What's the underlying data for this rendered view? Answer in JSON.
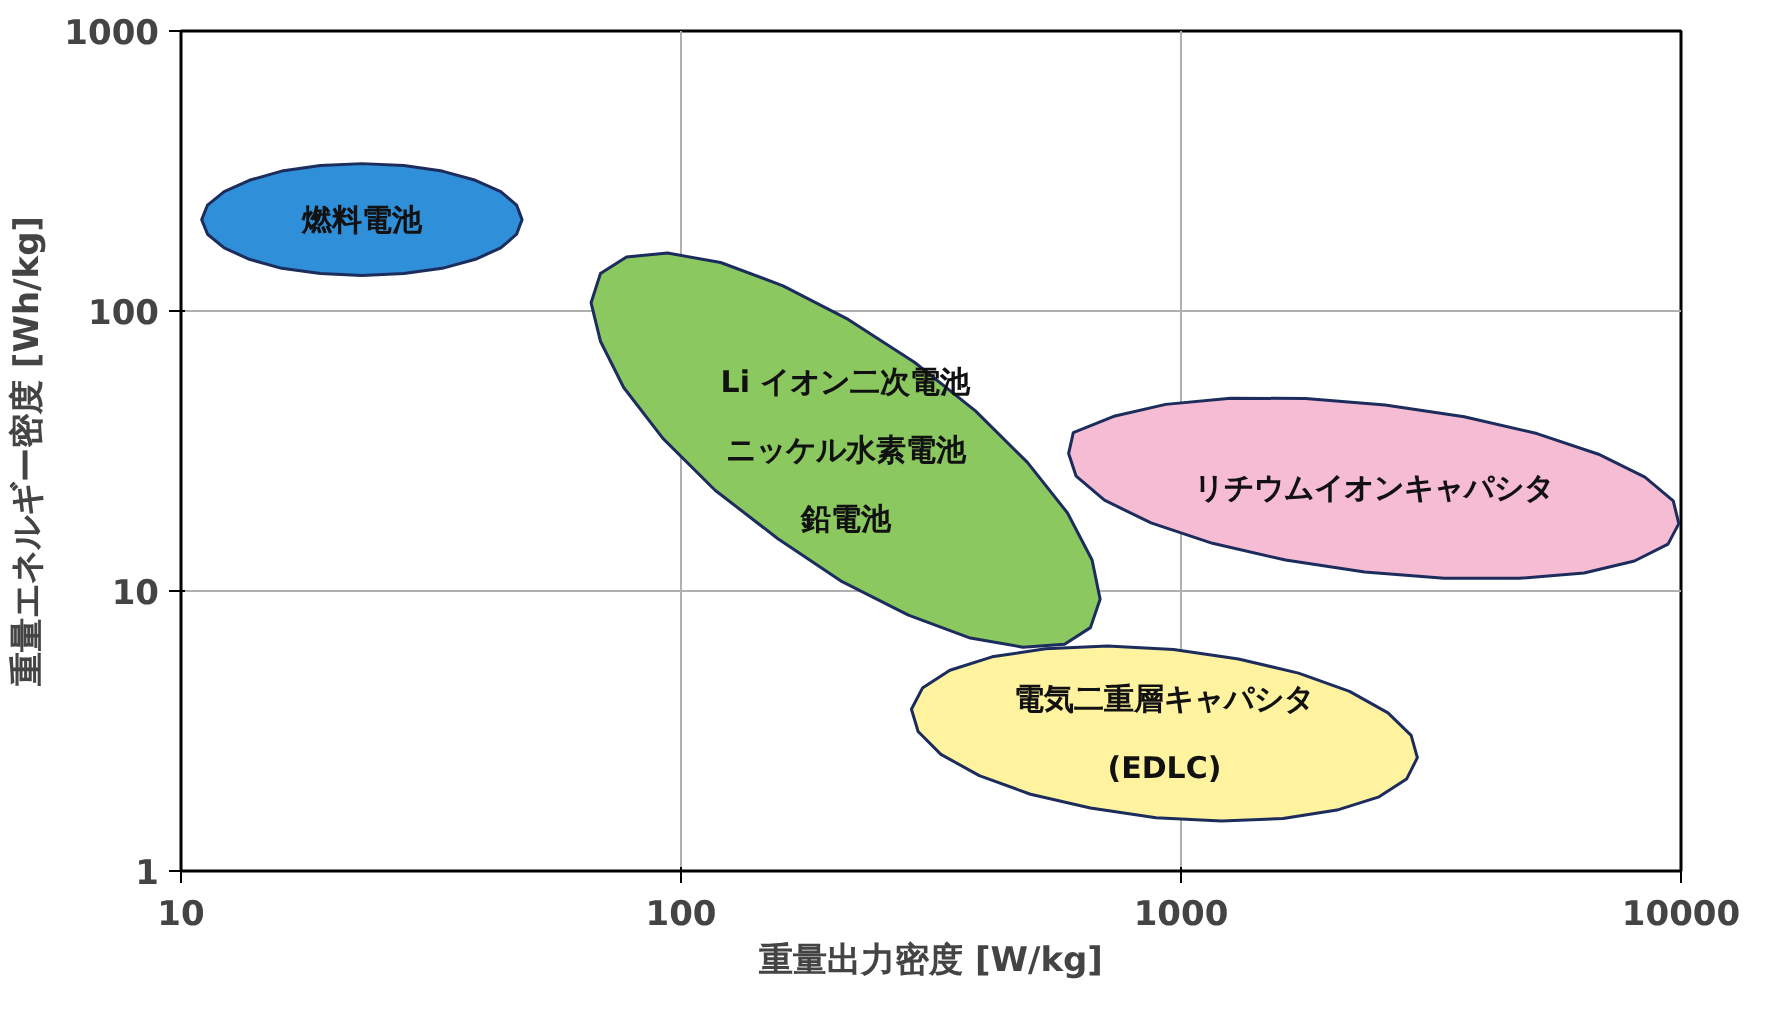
{
  "chart_data": {
    "type": "area",
    "xlabel": "重量出力密度 [W/kg]",
    "ylabel": "重量エネルギー密度 [Wh/kg]",
    "log": "xy",
    "xlim": [
      10,
      10000
    ],
    "ylim": [
      1,
      1000
    ],
    "xticks": [
      10,
      100,
      1000,
      10000
    ],
    "yticks": [
      1,
      10,
      100,
      1000
    ],
    "grid": true,
    "series": [
      {
        "name": "燃料電池",
        "color": "#2f8fd8",
        "x": [
          48.1,
          46.9,
          43.6,
          38.8,
          33.3,
          27.9,
          23.0,
          19.0,
          15.9,
          13.7,
          12.2,
          11.3,
          11.0,
          11.3,
          12.2,
          13.7,
          15.9,
          19.0,
          23.0,
          27.9,
          33.3,
          38.8,
          43.6,
          46.9
        ],
        "values": [
          212,
          239,
          267,
          293,
          316,
          331,
          336,
          331,
          316,
          293,
          267,
          239,
          212,
          188,
          168,
          153,
          142,
          136,
          134,
          136,
          142,
          153,
          168,
          188
        ]
      },
      {
        "color": "#8cc860",
        "x": [
          659,
          585,
          483,
          379,
          285,
          210,
          156,
          117,
          92,
          76.8,
          69,
          66.1,
          69,
          77.8,
          94,
          120,
          160,
          216,
          293,
          388,
          493,
          593,
          664,
          689
        ],
        "values": [
          7.4,
          6.45,
          6.3,
          6.79,
          8.2,
          10.8,
          15.4,
          22.9,
          35.1,
          53.3,
          78,
          107,
          136,
          156,
          161,
          149,
          123,
          93.3,
          65.6,
          44.0,
          28.8,
          19.0,
          12.9,
          9.35
        ]
      },
      {
        "name": "リチウムイオンキャパシタ",
        "color": "#f6bcd4",
        "x": [
          9900,
          9420,
          8070,
          6400,
          4740,
          3360,
          2330,
          1618,
          1156,
          871,
          703,
          617,
          596,
          609,
          738,
          932,
          1256,
          1774,
          2560,
          3684,
          5150,
          6840,
          8470,
          9650
        ],
        "values": [
          17.4,
          14.7,
          12.8,
          11.6,
          11.1,
          11.1,
          11.7,
          12.9,
          14.8,
          17.5,
          21.1,
          25.7,
          31.0,
          36.8,
          42.2,
          46.4,
          48.8,
          48.7,
          46.2,
          41.9,
          36.5,
          30.8,
          25.5,
          21.0
        ]
      },
      {
        "name": "電気二重層キャパシタ(EDLC)",
        "color": "#fff3a0",
        "x": [
          2970,
          2826,
          2490,
          2051,
          1600,
          1204,
          891,
          659,
          500,
          395,
          331,
          298,
          289,
          304,
          345,
          419,
          536,
          713,
          966,
          1303,
          1718,
          2173,
          2594,
          2886
        ],
        "values": [
          2.54,
          2.13,
          1.84,
          1.65,
          1.54,
          1.51,
          1.55,
          1.68,
          1.88,
          2.19,
          2.61,
          3.15,
          3.78,
          4.5,
          5.21,
          5.82,
          6.22,
          6.36,
          6.18,
          5.72,
          5.09,
          4.38,
          3.67,
          3.05
        ]
      }
    ],
    "annotations": [
      "Li イオン二次電池",
      "ニッケル水素電池",
      "鉛電池"
    ]
  }
}
